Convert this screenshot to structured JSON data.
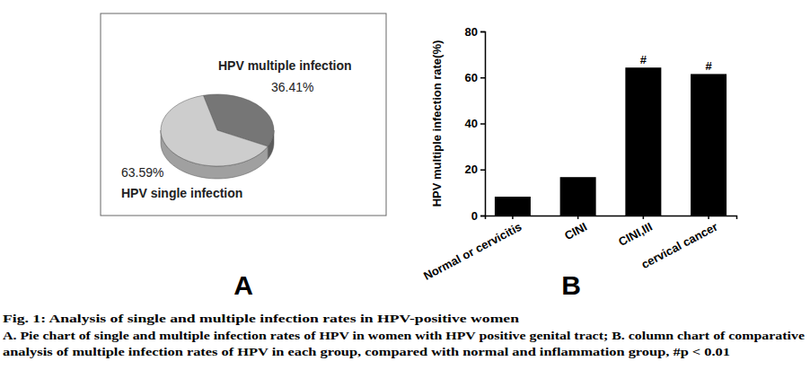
{
  "chart_data": [
    {
      "type": "pie",
      "panel": "A",
      "categories": [
        "HPV multiple infection",
        "HPV single infection"
      ],
      "values": [
        36.41,
        63.59
      ],
      "value_labels": [
        "36.41%",
        "63.59%"
      ],
      "colors": [
        "#767676",
        "#cdcdcd"
      ],
      "data_labels": true
    },
    {
      "type": "bar",
      "panel": "B",
      "y_label": "HPV multiple infection rate(%)",
      "categories": [
        "Normal or cervicitis",
        "CINI",
        "CINI,III",
        "cervical cancer"
      ],
      "values": [
        8.2,
        16.7,
        64.3,
        61.5
      ],
      "color": "#000000",
      "ylim": [
        0,
        80
      ],
      "yticks": [
        0,
        20,
        40,
        60,
        80
      ],
      "annotations": [
        {
          "category": "CINI,III",
          "text": "#"
        },
        {
          "category": "cervical cancer",
          "text": "#"
        }
      ]
    }
  ],
  "caption": {
    "title": "Fig. 1: Analysis of single and multiple infection rates in HPV-positive women",
    "lines": [
      "A. Pie chart of single and multiple infection rates of HPV in women with HPV positive genital tract; B. column chart of comparative",
      "analysis of multiple infection rates of HPV in each group, compared with normal and inflammation group, #p < 0.01"
    ]
  }
}
